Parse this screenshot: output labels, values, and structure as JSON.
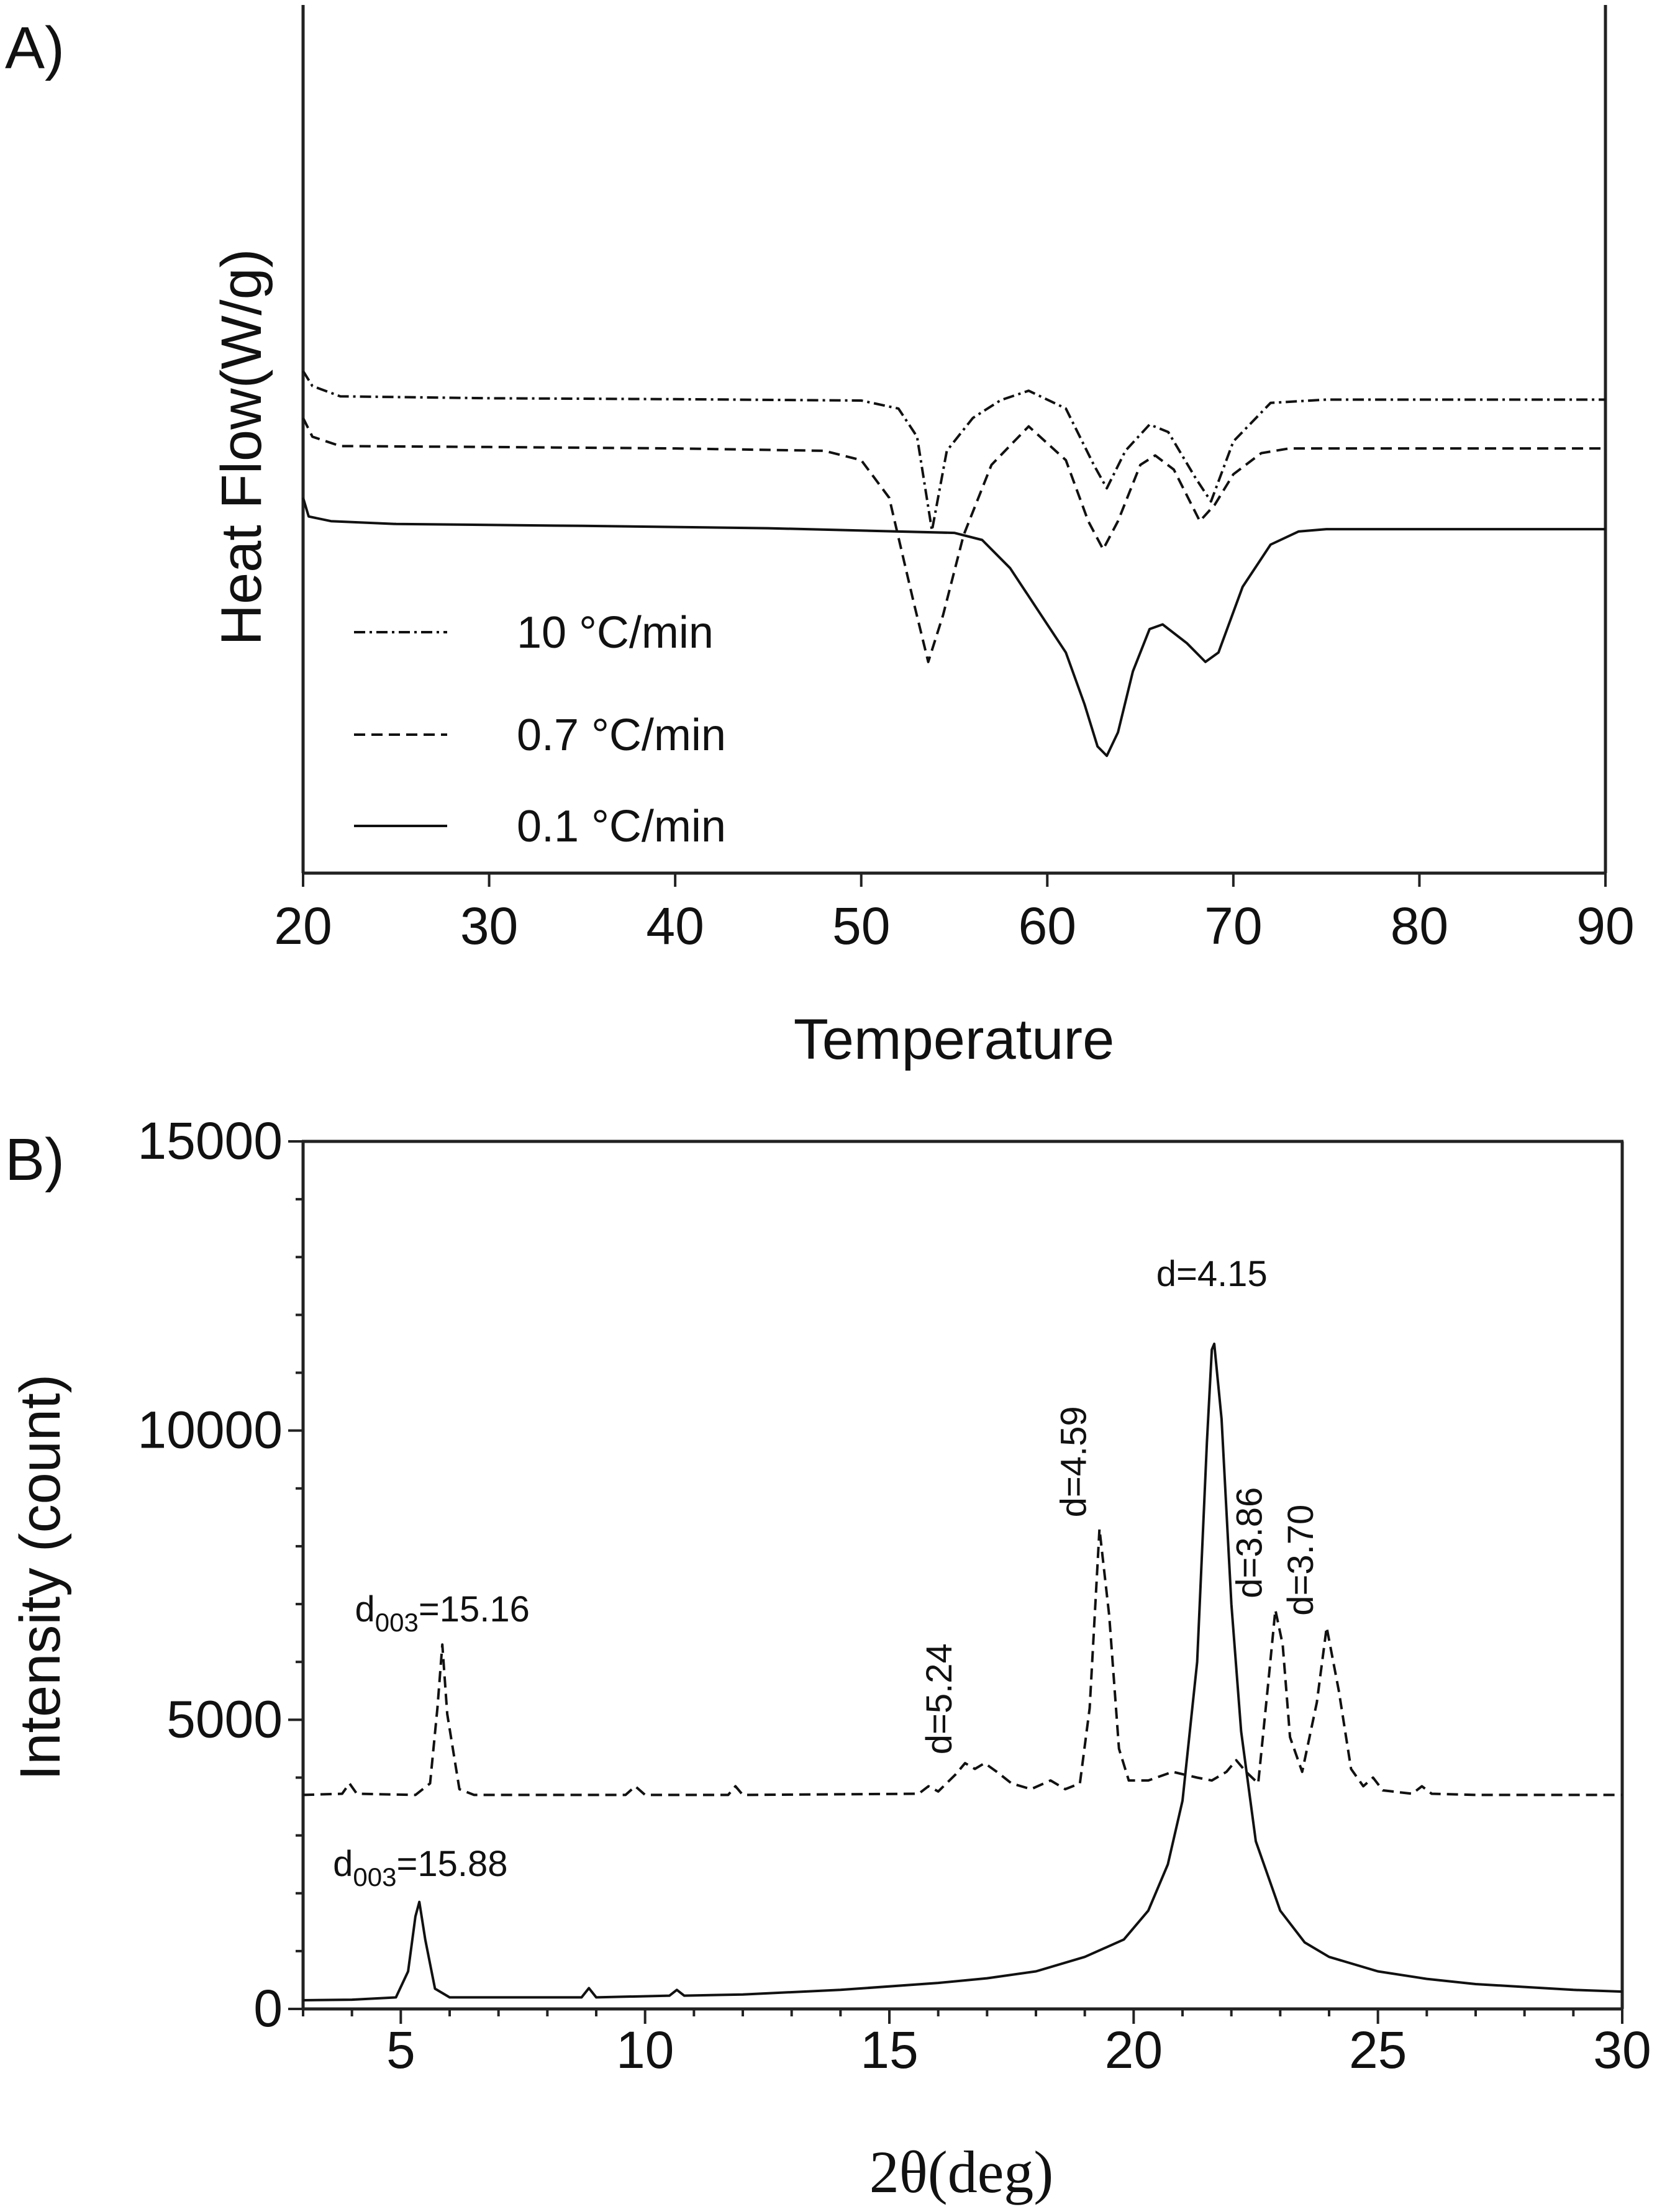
{
  "chart_data": [
    {
      "type": "line",
      "panel_label": "A)",
      "xlabel": "Temperature",
      "ylabel": "Heat Flow(W/g)",
      "xlim": [
        20,
        90
      ],
      "xticks": [
        20,
        30,
        40,
        50,
        60,
        70,
        80,
        90
      ],
      "y_tick_labels": false,
      "legend_position": "bottom-left",
      "series": [
        {
          "name": "10 °C/min",
          "style": "dash-dot",
          "points": [
            [
              20,
              0.78
            ],
            [
              20.5,
              0.812
            ],
            [
              22,
              0.834
            ],
            [
              30,
              0.838
            ],
            [
              40,
              0.84
            ],
            [
              50,
              0.843
            ],
            [
              52,
              0.86
            ],
            [
              53,
              0.92
            ],
            [
              53.8,
              1.12
            ],
            [
              54.6,
              0.95
            ],
            [
              56,
              0.88
            ],
            [
              57.5,
              0.842
            ],
            [
              59,
              0.822
            ],
            [
              61,
              0.86
            ],
            [
              62.5,
              0.98
            ],
            [
              63.2,
              1.03
            ],
            [
              64.2,
              0.95
            ],
            [
              65.5,
              0.894
            ],
            [
              66.5,
              0.91
            ],
            [
              68,
              1.01
            ],
            [
              68.8,
              1.058
            ],
            [
              70,
              0.93
            ],
            [
              72,
              0.848
            ],
            [
              75,
              0.841
            ],
            [
              90,
              0.841
            ]
          ]
        },
        {
          "name": "0.7 °C/min",
          "style": "dashed",
          "points": [
            [
              20,
              0.88
            ],
            [
              20.5,
              0.92
            ],
            [
              22,
              0.94
            ],
            [
              30,
              0.942
            ],
            [
              40,
              0.945
            ],
            [
              48,
              0.95
            ],
            [
              50,
              0.97
            ],
            [
              51.5,
              1.05
            ],
            [
              52.8,
              1.27
            ],
            [
              53.6,
              1.4
            ],
            [
              54.4,
              1.3
            ],
            [
              55.5,
              1.13
            ],
            [
              57,
              0.98
            ],
            [
              59,
              0.898
            ],
            [
              61,
              0.97
            ],
            [
              62.2,
              1.1
            ],
            [
              63,
              1.16
            ],
            [
              63.8,
              1.1
            ],
            [
              65,
              0.98
            ],
            [
              65.8,
              0.96
            ],
            [
              66.8,
              0.99
            ],
            [
              68.2,
              1.1
            ],
            [
              69,
              1.065
            ],
            [
              70,
              1.0
            ],
            [
              71.5,
              0.955
            ],
            [
              73,
              0.945
            ],
            [
              90,
              0.945
            ]
          ]
        },
        {
          "name": "0.1 °C/min",
          "style": "solid",
          "points": [
            [
              20,
              1.05
            ],
            [
              20.3,
              1.09
            ],
            [
              21.5,
              1.1
            ],
            [
              25,
              1.106
            ],
            [
              35,
              1.11
            ],
            [
              45,
              1.115
            ],
            [
              55,
              1.125
            ],
            [
              56.5,
              1.14
            ],
            [
              58,
              1.2
            ],
            [
              59.5,
              1.29
            ],
            [
              61,
              1.38
            ],
            [
              62,
              1.49
            ],
            [
              62.7,
              1.58
            ],
            [
              63.2,
              1.6
            ],
            [
              63.8,
              1.55
            ],
            [
              64.6,
              1.42
            ],
            [
              65.5,
              1.33
            ],
            [
              66.2,
              1.32
            ],
            [
              67.5,
              1.36
            ],
            [
              68.5,
              1.4
            ],
            [
              69.2,
              1.38
            ],
            [
              70.5,
              1.24
            ],
            [
              72,
              1.15
            ],
            [
              73.5,
              1.122
            ],
            [
              75,
              1.117
            ],
            [
              90,
              1.117
            ]
          ]
        }
      ]
    },
    {
      "type": "line",
      "panel_label": "B)",
      "xlabel": "2θ(deg)",
      "ylabel": "Intensity (count)",
      "xlim": [
        3,
        30
      ],
      "ylim": [
        0,
        15000
      ],
      "xticks": [
        5,
        10,
        15,
        20,
        25,
        30
      ],
      "yticks": [
        0,
        5000,
        10000,
        15000
      ],
      "series": [
        {
          "style": "dashed",
          "points": [
            [
              3,
              3700
            ],
            [
              3.8,
              3720
            ],
            [
              3.95,
              3900
            ],
            [
              4.1,
              3720
            ],
            [
              5.3,
              3700
            ],
            [
              5.6,
              3900
            ],
            [
              5.75,
              5200
            ],
            [
              5.85,
              6300
            ],
            [
              5.95,
              5100
            ],
            [
              6.2,
              3800
            ],
            [
              6.5,
              3700
            ],
            [
              9.6,
              3700
            ],
            [
              9.8,
              3850
            ],
            [
              10.0,
              3700
            ],
            [
              11.7,
              3700
            ],
            [
              11.85,
              3850
            ],
            [
              12.0,
              3700
            ],
            [
              15.6,
              3720
            ],
            [
              15.8,
              3850
            ],
            [
              16.0,
              3760
            ],
            [
              16.35,
              4050
            ],
            [
              16.55,
              4250
            ],
            [
              16.75,
              4150
            ],
            [
              16.95,
              4250
            ],
            [
              17.2,
              4100
            ],
            [
              17.5,
              3900
            ],
            [
              17.9,
              3800
            ],
            [
              18.3,
              3950
            ],
            [
              18.6,
              3800
            ],
            [
              18.9,
              3900
            ],
            [
              19.1,
              5200
            ],
            [
              19.3,
              8300
            ],
            [
              19.5,
              6800
            ],
            [
              19.7,
              4500
            ],
            [
              19.9,
              3950
            ],
            [
              20.3,
              3950
            ],
            [
              20.8,
              4100
            ],
            [
              21.3,
              4000
            ],
            [
              21.6,
              3950
            ],
            [
              21.9,
              4100
            ],
            [
              22.1,
              4300
            ],
            [
              22.3,
              4100
            ],
            [
              22.55,
              3900
            ],
            [
              22.75,
              5600
            ],
            [
              22.9,
              6900
            ],
            [
              23.05,
              6300
            ],
            [
              23.2,
              4700
            ],
            [
              23.45,
              4100
            ],
            [
              23.75,
              5300
            ],
            [
              23.95,
              6600
            ],
            [
              24.2,
              5500
            ],
            [
              24.45,
              4150
            ],
            [
              24.7,
              3850
            ],
            [
              24.9,
              4000
            ],
            [
              25.1,
              3780
            ],
            [
              25.7,
              3720
            ],
            [
              25.9,
              3850
            ],
            [
              26.1,
              3720
            ],
            [
              27,
              3700
            ],
            [
              30,
              3700
            ]
          ]
        },
        {
          "style": "solid",
          "points": [
            [
              3,
              150
            ],
            [
              4,
              160
            ],
            [
              4.9,
              200
            ],
            [
              5.15,
              650
            ],
            [
              5.3,
              1600
            ],
            [
              5.38,
              1850
            ],
            [
              5.5,
              1200
            ],
            [
              5.7,
              350
            ],
            [
              6,
              200
            ],
            [
              8.7,
              200
            ],
            [
              8.85,
              360
            ],
            [
              9.0,
              200
            ],
            [
              10.5,
              230
            ],
            [
              10.65,
              330
            ],
            [
              10.8,
              230
            ],
            [
              12,
              250
            ],
            [
              14,
              330
            ],
            [
              16,
              450
            ],
            [
              17,
              530
            ],
            [
              18,
              650
            ],
            [
              19,
              900
            ],
            [
              19.8,
              1200
            ],
            [
              20.3,
              1700
            ],
            [
              20.7,
              2500
            ],
            [
              21.0,
              3600
            ],
            [
              21.3,
              6000
            ],
            [
              21.5,
              9800
            ],
            [
              21.6,
              11400
            ],
            [
              21.65,
              11500
            ],
            [
              21.8,
              10200
            ],
            [
              22.0,
              7000
            ],
            [
              22.2,
              4800
            ],
            [
              22.5,
              2900
            ],
            [
              23.0,
              1700
            ],
            [
              23.5,
              1150
            ],
            [
              24,
              900
            ],
            [
              25,
              650
            ],
            [
              26,
              520
            ],
            [
              27,
              430
            ],
            [
              28,
              380
            ],
            [
              29,
              330
            ],
            [
              30,
              300
            ]
          ]
        }
      ],
      "annotations": [
        {
          "text": "d",
          "sub": "003",
          "tail": "=15.16",
          "x": 5.85,
          "y": 6700
        },
        {
          "text": "d",
          "sub": "003",
          "tail": "=15.88",
          "x": 5.4,
          "y": 2300
        },
        {
          "text": "d=5.24",
          "x": 16.55,
          "y": 4400,
          "rotate": true
        },
        {
          "text": "d=4.59",
          "x": 19.3,
          "y": 8500,
          "rotate": true
        },
        {
          "text": "d=4.15",
          "x": 21.6,
          "y": 12500
        },
        {
          "text": "d=3.86",
          "x": 22.9,
          "y": 7100,
          "rotate": true
        },
        {
          "text": "d=3.70",
          "x": 23.95,
          "y": 6800,
          "rotate": true
        }
      ]
    }
  ]
}
